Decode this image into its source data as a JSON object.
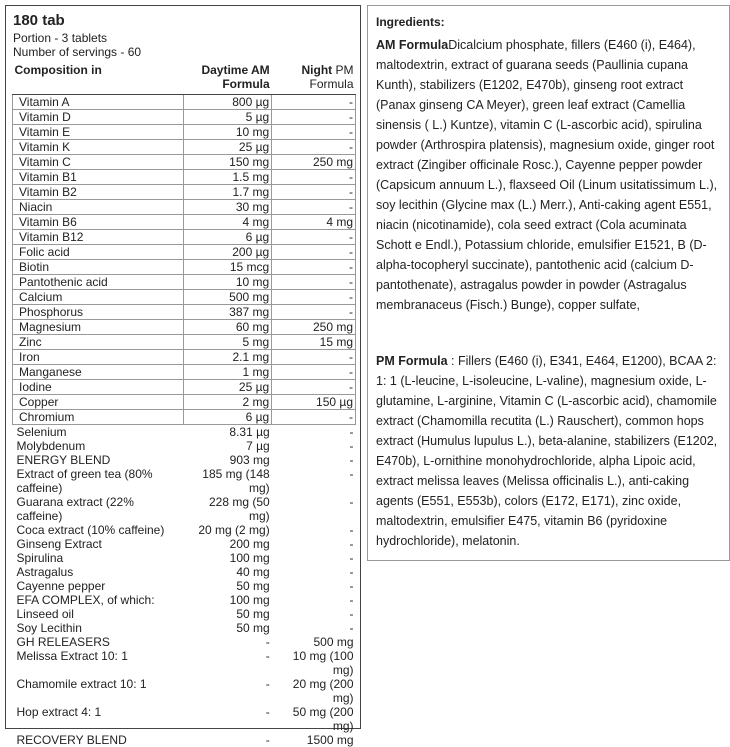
{
  "left": {
    "title": "180 tab",
    "portion": "Portion - 3 tablets",
    "servings": "Number of servings - 60",
    "table": {
      "header": {
        "composition": "Composition in",
        "am": "Daytime AM Formula",
        "pm_bold": "Night",
        "pm_rest": "PM Formula"
      },
      "rows": [
        [
          "Vitamin A",
          "800 µg",
          "-"
        ],
        [
          "Vitamin D",
          "5 µg",
          "-"
        ],
        [
          "Vitamin E",
          "10 mg",
          "-"
        ],
        [
          "Vitamin K",
          "25 µg",
          "-"
        ],
        [
          "Vitamin C",
          "150 mg",
          "250 mg"
        ],
        [
          "Vitamin B1",
          "1.5 mg",
          "-"
        ],
        [
          "Vitamin B2",
          "1.7 mg",
          "-"
        ],
        [
          "Niacin",
          "30 mg",
          "-"
        ],
        [
          "Vitamin B6",
          "4 mg",
          "4 mg"
        ],
        [
          "Vitamin B12",
          "6 µg",
          "-"
        ],
        [
          "Folic acid",
          "200 µg",
          "-"
        ],
        [
          "Biotin",
          "15 mcg",
          "-"
        ],
        [
          "Pantothenic acid",
          "10 mg",
          "-"
        ],
        [
          "Calcium",
          "500 mg",
          "-"
        ],
        [
          "Phosphorus",
          "387 mg",
          "-"
        ],
        [
          "Magnesium",
          "60 mg",
          "250 mg"
        ],
        [
          "Zinc",
          "5 mg",
          "15 mg"
        ],
        [
          "Iron",
          "2.1 mg",
          "-"
        ],
        [
          "Manganese",
          "1 mg",
          "-"
        ],
        [
          "Iodine",
          "25 µg",
          "-"
        ],
        [
          "Copper",
          "2 mg",
          "150 µg"
        ],
        [
          "Chromium",
          "6 µg",
          "-"
        ],
        [
          "Selenium",
          "8.31 µg",
          "-"
        ],
        [
          "Molybdenum",
          "7 µg",
          "-"
        ],
        [
          "ENERGY BLEND",
          "903 mg",
          "-"
        ],
        [
          "Extract of green tea (80% caffeine)",
          "185 mg (148 mg)",
          "-"
        ],
        [
          "Guarana extract (22% caffeine)",
          "228 mg (50 mg)",
          "-"
        ],
        [
          "Coca extract (10% caffeine)",
          "20 mg (2 mg)",
          "-"
        ],
        [
          "Ginseng Extract",
          "200 mg",
          "-"
        ],
        [
          "Spirulina",
          "100 mg",
          "-"
        ],
        [
          "Astragalus",
          "40 mg",
          "-"
        ],
        [
          "Cayenne pepper",
          "50 mg",
          "-"
        ],
        [
          "EFA COMPLEX, of which:",
          "100 mg",
          "-"
        ],
        [
          "Linseed oil",
          "50 mg",
          "-"
        ],
        [
          "Soy Lecithin",
          "50 mg",
          "-"
        ],
        [
          "GH RELEASERS",
          "-",
          "500 mg"
        ],
        [
          "Melissa Extract 10: 1",
          "-",
          "10 mg (100 mg)"
        ],
        [
          "Chamomile extract 10: 1",
          "-",
          "20 mg (200 mg)"
        ],
        [
          "Hop extract 4: 1",
          "-",
          "50 mg (200 mg)"
        ],
        [
          "RECOVERY BLEND",
          "-",
          "1500 mg"
        ]
      ]
    }
  },
  "ingredients": {
    "title": "Ingredients:",
    "am": {
      "label": "AM Formula",
      "text": "Dicalcium phosphate, fillers (E460 (i), E464), maltodextrin, extract of guarana seeds (Paullinia cupana Kunth), stabilizers (E1202, E470b), ginseng root extract (Panax ginseng CA Meyer), green leaf extract (Camellia sinensis ( L.) Kuntze), vitamin C (L-ascorbic acid), spirulina powder (Arthrospira platensis), magnesium oxide, ginger root extract (Zingiber officinale Rosc.), Cayenne pepper powder (Capsicum annuum L.), flaxseed Oil (Linum usitatissimum L.), soy lecithin (Glycine max (L.) Merr.), Anti-caking agent E551, niacin (nicotinamide), cola seed extract (Cola acuminata Schott e Endl.), Potassium chloride, emulsifier E1521, B (D-alpha-tocopheryl succinate), pantothenic acid (calcium D-pantothenate), astragalus powder in powder (Astragalus membranaceus (Fisch.) Bunge), copper sulfate,"
    },
    "pm": {
      "label": "PM Formula",
      "text": " : Fillers (E460 (i), E341, E464, E1200), BCAA 2: 1: 1 (L-leucine, L-isoleucine, L-valine), magnesium oxide, L-glutamine, L-arginine, Vitamin C (L-ascorbic acid), chamomile extract (Chamomilla recutita (L.) Rauschert), common hops extract (Humulus lupulus L.), beta-alanine, stabilizers (E1202, E470b), L-ornithine monohydrochloride, alpha Lipoic acid, extract melissa leaves (Melissa officinalis L.), anti-caking agents (E551, E553b), colors (E172, E171), zinc oxide, maltodextrin, emulsifier E475, vitamin B6 (pyridoxine hydrochloride), melatonin."
    }
  }
}
